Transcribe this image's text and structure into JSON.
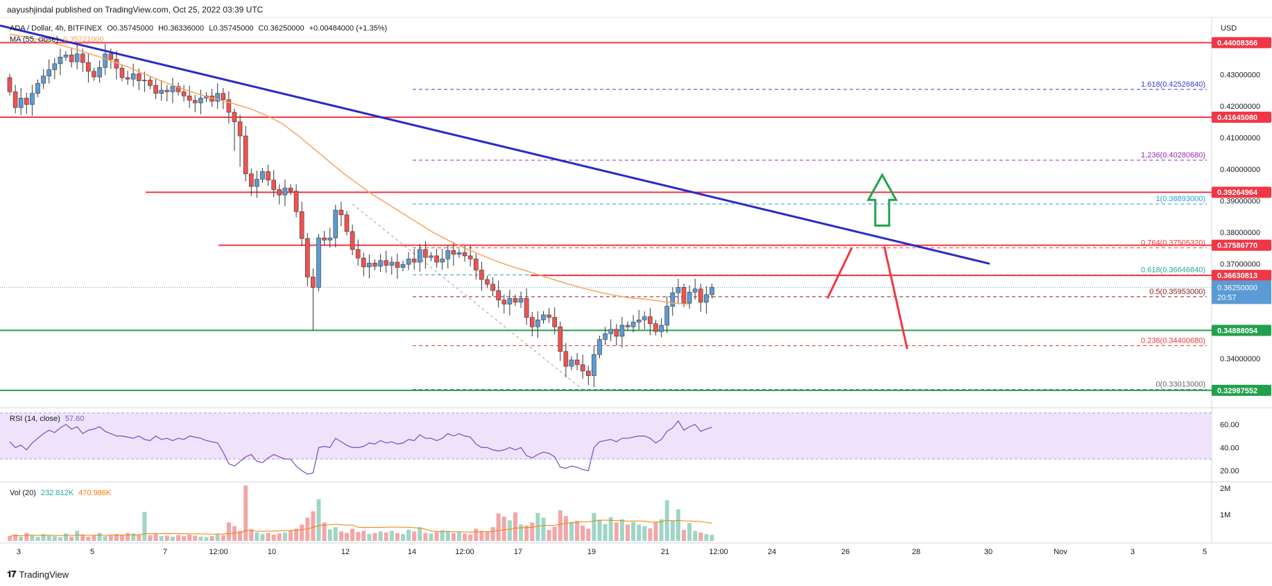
{
  "publisher": "aayushjindal published on TradingView.com, Oct 25, 2022 03:39 UTC",
  "symbol_line": {
    "symbol": "ADA / Dollar, 4h, BITFINEX",
    "open": "O0.35745000",
    "high": "H0.36336000",
    "low": "L0.35745000",
    "close": "C0.36250000",
    "change": "+0.00484000 (+1.35%)"
  },
  "ma_line": {
    "label": "MA (55, close)",
    "value": "0.35721000",
    "color": "#f7a35c"
  },
  "rsi_line": {
    "label": "RSI (14, close)",
    "value": "57.60",
    "color": "#7e57c2"
  },
  "vol_line": {
    "label": "Vol (20)",
    "value1": "232.812K",
    "value2": "470.986K"
  },
  "brand": "TradingView",
  "currency": "USD",
  "colors": {
    "up": "#5b9bd5",
    "down": "#ef5350",
    "resistance": "#f23645",
    "support": "#22a04b",
    "trend": "#2929c8",
    "arrow_up": "#26a69a",
    "fib_text": "#7b4fbf"
  },
  "chart_data": [
    {
      "type": "line",
      "title": "ADA / Dollar, 4h, BITFINEX",
      "x_tick_labels": [
        "3",
        "5",
        "7",
        "12:00",
        "10",
        "12",
        "14",
        "12:00",
        "17",
        "19",
        "21",
        "12:00",
        "24",
        "26",
        "28",
        "30",
        "Nov",
        "3",
        "5"
      ],
      "y_tick_labels": [
        "0.43000000",
        "0.42000000",
        "0.41000000",
        "0.40000000",
        "0.39000000",
        "0.38000000",
        "0.37000000",
        "0.34000000"
      ],
      "ylim": [
        0.325,
        0.447
      ],
      "price_labels": [
        {
          "value": 0.44008366,
          "text": "0.44008366",
          "kind": "resistance"
        },
        {
          "value": 0.4164508,
          "text": "0.41645080",
          "kind": "resistance"
        },
        {
          "value": 0.39264964,
          "text": "0.39264964",
          "kind": "resistance"
        },
        {
          "value": 0.3758677,
          "text": "0.37586770",
          "kind": "resistance"
        },
        {
          "value": 0.36630813,
          "text": "0.36630813",
          "kind": "resistance"
        },
        {
          "value": 0.3625,
          "text": "0.36250000",
          "kind": "current",
          "countdown": "20:57"
        },
        {
          "value": 0.34888054,
          "text": "0.34888054",
          "kind": "support"
        },
        {
          "value": 0.32987552,
          "text": "0.32987552",
          "kind": "support"
        }
      ],
      "fib_levels": [
        {
          "ratio": "1.618",
          "value": 0.4252684,
          "label": "1.618(0.42526840)",
          "color": "#3b3bd1"
        },
        {
          "ratio": "1.236",
          "value": 0.4028068,
          "label": "1.236(0.40280680)",
          "color": "#9c27b0"
        },
        {
          "ratio": "1",
          "value": 0.38893,
          "label": "1(0.38893000)",
          "color": "#2d9bd6"
        },
        {
          "ratio": "0.764",
          "value": 0.3750532,
          "label": "0.764(0.37505320)",
          "color": "#e53935"
        },
        {
          "ratio": "0.618",
          "value": 0.3664684,
          "label": "0.618(0.36646840)",
          "color": "#26a69a"
        },
        {
          "ratio": "0.5",
          "value": 0.35953,
          "label": "0.5(0.35953000)",
          "color": "#8d1b1b"
        },
        {
          "ratio": "0.236",
          "value": 0.3440068,
          "label": "0.236(0.34400680)",
          "color": "#e53935"
        },
        {
          "ratio": "0",
          "value": 0.33013,
          "label": "0(0.33013000)",
          "color": "#666666"
        }
      ],
      "closes": [
        0.4245,
        0.4195,
        0.4225,
        0.4205,
        0.424,
        0.4272,
        0.4295,
        0.4315,
        0.4334,
        0.4355,
        0.4362,
        0.434,
        0.4365,
        0.4338,
        0.431,
        0.4292,
        0.4322,
        0.4365,
        0.4348,
        0.432,
        0.429,
        0.4285,
        0.4302,
        0.428,
        0.4282,
        0.4265,
        0.424,
        0.425,
        0.4245,
        0.4262,
        0.4245,
        0.4232,
        0.4218,
        0.421,
        0.4225,
        0.4232,
        0.4215,
        0.424,
        0.422,
        0.418,
        0.415,
        0.4105,
        0.3985,
        0.3945,
        0.3968,
        0.3992,
        0.3965,
        0.3935,
        0.3918,
        0.394,
        0.393,
        0.3865,
        0.378,
        0.3658,
        0.3625,
        0.3782,
        0.3775,
        0.3782,
        0.387,
        0.3855,
        0.3802,
        0.3745,
        0.3718,
        0.369,
        0.3702,
        0.3692,
        0.371,
        0.3695,
        0.3705,
        0.3688,
        0.3698,
        0.3715,
        0.3705,
        0.3745,
        0.372,
        0.3725,
        0.3705,
        0.3715,
        0.3742,
        0.373,
        0.3735,
        0.3725,
        0.3715,
        0.368,
        0.365,
        0.3635,
        0.3615,
        0.3585,
        0.3572,
        0.359,
        0.3578,
        0.359,
        0.353,
        0.35,
        0.3522,
        0.3538,
        0.353,
        0.35,
        0.3422,
        0.3375,
        0.3395,
        0.338,
        0.336,
        0.3345,
        0.3412,
        0.346,
        0.3478,
        0.3492,
        0.347,
        0.3505,
        0.35,
        0.3515,
        0.3522,
        0.3532,
        0.351,
        0.3485,
        0.3505,
        0.3565,
        0.3608,
        0.3625,
        0.3575,
        0.361,
        0.362,
        0.3578,
        0.3602,
        0.3625
      ],
      "ma55": [
        0.4428,
        0.442,
        0.441,
        0.4398,
        0.4385,
        0.437,
        0.4355,
        0.4338,
        0.432,
        0.43,
        0.428,
        0.4262,
        0.4245,
        0.423,
        0.4218,
        0.4205,
        0.419,
        0.417,
        0.4145,
        0.411,
        0.407,
        0.403,
        0.399,
        0.3955,
        0.392,
        0.389,
        0.386,
        0.383,
        0.38,
        0.3775,
        0.3752,
        0.3732,
        0.3712,
        0.3695,
        0.368,
        0.3665,
        0.365,
        0.3635,
        0.3622,
        0.361,
        0.36,
        0.3592,
        0.3588,
        0.3582,
        0.3575,
        0.3572
      ],
      "ma55_x_start": 0,
      "ma55_x_end": 121,
      "rsi": {
        "ylim": [
          12,
          72
        ],
        "tick_labels": [
          "60.00",
          "40.00",
          "20.00"
        ],
        "band": [
          30,
          70
        ],
        "values": [
          45,
          40,
          42,
          38,
          44,
          48,
          52,
          55,
          53,
          57,
          60,
          56,
          58,
          52,
          55,
          56,
          58,
          54,
          52,
          50,
          50,
          49,
          48,
          50,
          47,
          46,
          50,
          47,
          48,
          46,
          48,
          47,
          50,
          49,
          48,
          46,
          45,
          44,
          36,
          26,
          24,
          28,
          32,
          34,
          28,
          27,
          31,
          34,
          32,
          30,
          30,
          24,
          20,
          17,
          18,
          40,
          41,
          40,
          48,
          45,
          42,
          40,
          40,
          41,
          44,
          43,
          46,
          44,
          45,
          43,
          44,
          47,
          46,
          51,
          48,
          48,
          46,
          48,
          52,
          50,
          52,
          50,
          49,
          43,
          40,
          40,
          38,
          37,
          38,
          40,
          38,
          40,
          33,
          31,
          34,
          36,
          35,
          32,
          23,
          22,
          24,
          23,
          21,
          20,
          40,
          45,
          46,
          47,
          45,
          48,
          48,
          49,
          50,
          50,
          48,
          44,
          47,
          54,
          57,
          63,
          55,
          58,
          60,
          54,
          56,
          57.6
        ]
      },
      "volume": {
        "tick_labels": [
          "2M",
          "1M"
        ],
        "max": 2100000,
        "values": [
          180000,
          240000,
          160000,
          300000,
          200000,
          150000,
          260000,
          220000,
          180000,
          140000,
          280000,
          160000,
          380000,
          240000,
          160000,
          200000,
          300000,
          180000,
          220000,
          260000,
          240000,
          300000,
          280000,
          220000,
          1100000,
          220000,
          260000,
          180000,
          200000,
          160000,
          220000,
          180000,
          240000,
          200000,
          160000,
          140000,
          180000,
          260000,
          220000,
          700000,
          560000,
          380000,
          2100000,
          440000,
          320000,
          260000,
          300000,
          240000,
          280000,
          320000,
          380000,
          460000,
          620000,
          880000,
          1120000,
          1580000,
          700000,
          440000,
          520000,
          360000,
          300000,
          460000,
          340000,
          380000,
          260000,
          300000,
          360000,
          320000,
          380000,
          300000,
          260000,
          420000,
          360000,
          520000,
          300000,
          280000,
          340000,
          400000,
          380000,
          300000,
          340000,
          280000,
          240000,
          460000,
          380000,
          360000,
          520000,
          1040000,
          920000,
          780000,
          1080000,
          620000,
          580000,
          700000,
          1060000,
          880000,
          420000,
          540000,
          1160000,
          940000,
          720000,
          760000,
          580000,
          460000,
          1060000,
          800000,
          640000,
          900000,
          700000,
          820000,
          620000,
          720000,
          620000,
          560000,
          480000,
          720000,
          820000,
          1540000,
          760000,
          1200000,
          420000,
          680000,
          380000,
          320000,
          260000,
          232812
        ]
      }
    }
  ]
}
